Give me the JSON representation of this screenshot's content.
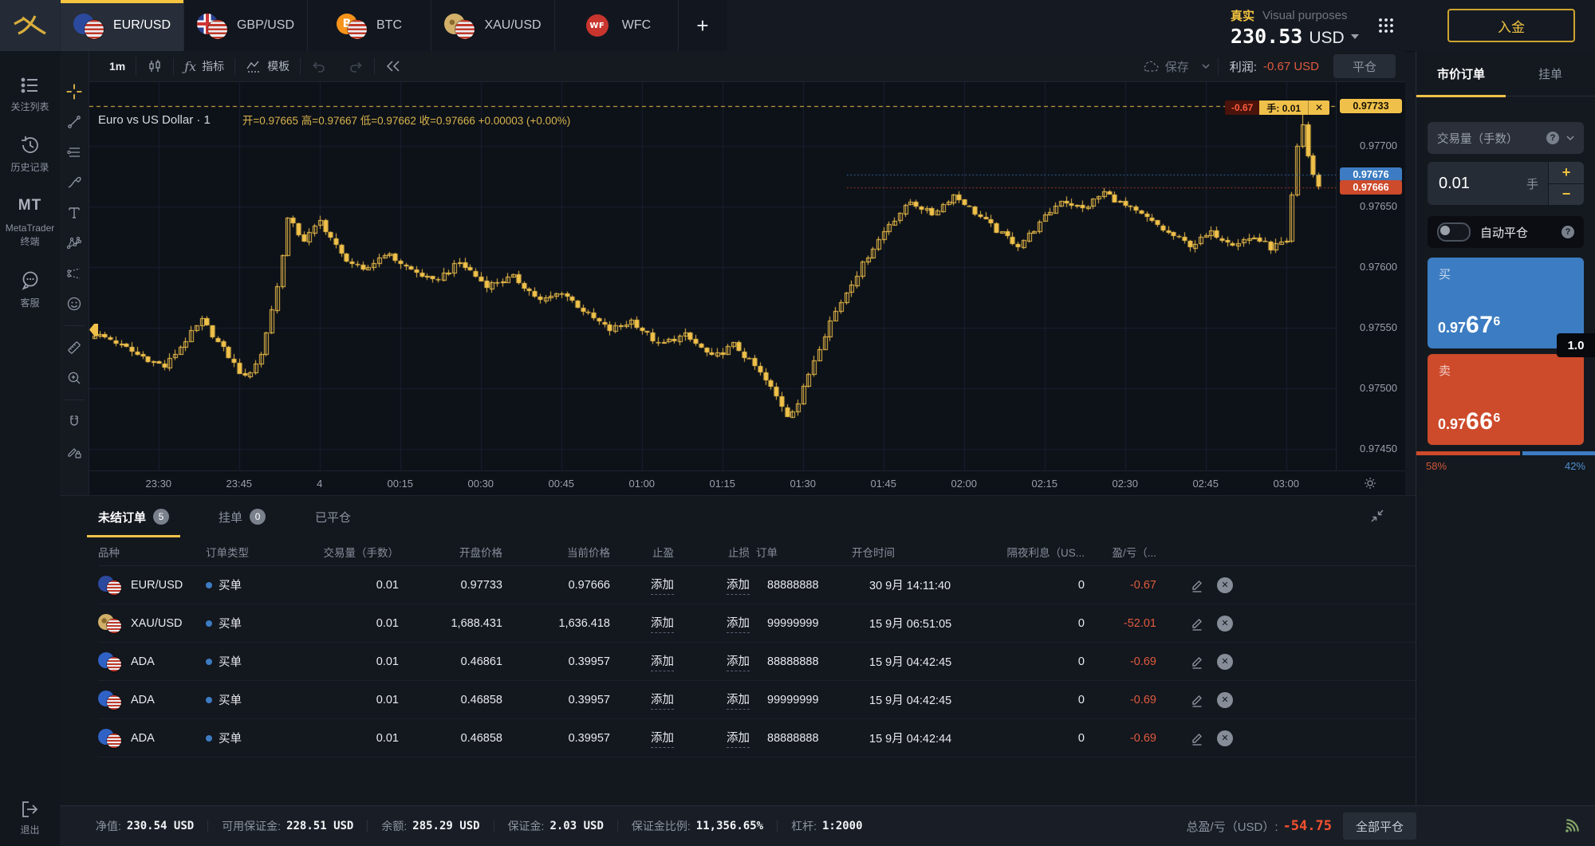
{
  "brand": {
    "deposit_label": "入金"
  },
  "top_bar": {
    "tabs": [
      {
        "label": "EUR/USD",
        "icon": "eu",
        "active": true
      },
      {
        "label": "GBP/USD",
        "icon": "gb",
        "active": false
      },
      {
        "label": "BTC",
        "icon": "btc",
        "active": false
      },
      {
        "label": "XAU/USD",
        "icon": "xau",
        "active": false
      },
      {
        "label": "WFC",
        "icon": "wf",
        "active": false
      }
    ],
    "add_tab": "+",
    "account": {
      "mode": "真实",
      "note": "Visual purposes",
      "balance": "230.53",
      "currency": "USD"
    }
  },
  "sidebar": {
    "items": [
      {
        "label": "关注列表",
        "icon": "watchlist-icon"
      },
      {
        "label": "历史记录",
        "icon": "history-icon"
      },
      {
        "label": "MetaTrader 终端",
        "icon": "mt-icon",
        "icon_text": "MT"
      },
      {
        "label": "客服",
        "icon": "support-icon"
      }
    ],
    "logout_label": "退出"
  },
  "chart_toolbar": {
    "interval": "1m",
    "indicators": "指标",
    "template": "模板",
    "save": "保存",
    "profit_label": "利润:",
    "profit_value": "-0.67 USD",
    "close_position": "平仓"
  },
  "chart": {
    "title": "Euro vs US Dollar · 1",
    "ohlc_text": "开=0.97665  高=0.97667  低=0.97662  收=0.97666  +0.00003 (+0.00%)",
    "position_pill": {
      "pl": "-0.67",
      "lots": "手: 0.01",
      "close": "✕"
    },
    "side_tools": [
      "crosshair-icon",
      "trendline-icon",
      "horizontal-lines-icon",
      "brush-icon",
      "text-icon",
      "xabcd-pattern-icon",
      "forecast-icon",
      "emoji-icon",
      "ruler-icon",
      "zoom-in-icon",
      "magnet-icon",
      "drawing-lock-icon"
    ]
  },
  "chart_data": {
    "type": "candlestick",
    "symbol": "EUR/USD",
    "interval": "1m",
    "title": "Euro vs US Dollar · 1",
    "current": {
      "open": 0.97665,
      "high": 0.97667,
      "low": 0.97662,
      "close": 0.97666,
      "change": "+0.00003",
      "change_pct": "+0.00%"
    },
    "y_axis": {
      "ticks": [
        0.977,
        0.9765,
        0.976,
        0.9755,
        0.975,
        0.9745
      ],
      "labels": [
        "0.97700",
        "0.97650",
        "0.97600",
        "0.97550",
        "0.97500",
        "0.97450"
      ],
      "range": [
        0.97432,
        0.97753
      ]
    },
    "x_axis": {
      "labels": [
        "23:30",
        "23:45",
        "4",
        "00:15",
        "00:30",
        "00:45",
        "01:00",
        "01:15",
        "01:30",
        "01:45",
        "02:00",
        "02:15",
        "02:30",
        "02:45",
        "03:00"
      ],
      "first_label_candle_index": 12,
      "candles_per_label": 15,
      "start_time": "23:18",
      "end_time": "03:06"
    },
    "price_lines": {
      "position": {
        "price": 0.97733,
        "label": "0.97733",
        "color": "#f0c14a",
        "style": "dashed"
      },
      "ask": {
        "price": 0.97676,
        "label": "0.97676",
        "color": "#3d7cc2",
        "style": "dotted"
      },
      "bid": {
        "price": 0.97666,
        "label": "0.97666",
        "color": "#cd4a2b",
        "style": "dotted"
      }
    },
    "candle_color": "#f0c14a",
    "candle_count": 229,
    "series_keyframes": [
      [
        0,
        0.97545
      ],
      [
        4,
        0.97538
      ],
      [
        8,
        0.97528
      ],
      [
        13,
        0.97518
      ],
      [
        17,
        0.9754
      ],
      [
        20,
        0.97556
      ],
      [
        24,
        0.97532
      ],
      [
        28,
        0.97508
      ],
      [
        31,
        0.97528
      ],
      [
        34,
        0.97584
      ],
      [
        36,
        0.9764
      ],
      [
        39,
        0.97622
      ],
      [
        42,
        0.97638
      ],
      [
        46,
        0.9761
      ],
      [
        50,
        0.97596
      ],
      [
        54,
        0.97612
      ],
      [
        58,
        0.976
      ],
      [
        63,
        0.97588
      ],
      [
        68,
        0.97604
      ],
      [
        73,
        0.97585
      ],
      [
        78,
        0.97592
      ],
      [
        83,
        0.97572
      ],
      [
        87,
        0.9758
      ],
      [
        92,
        0.9756
      ],
      [
        96,
        0.97548
      ],
      [
        100,
        0.97556
      ],
      [
        105,
        0.97536
      ],
      [
        110,
        0.97544
      ],
      [
        115,
        0.97525
      ],
      [
        119,
        0.97536
      ],
      [
        123,
        0.97518
      ],
      [
        126,
        0.975
      ],
      [
        129,
        0.97478
      ],
      [
        131,
        0.97488
      ],
      [
        134,
        0.97524
      ],
      [
        137,
        0.97556
      ],
      [
        140,
        0.9758
      ],
      [
        144,
        0.9761
      ],
      [
        148,
        0.97636
      ],
      [
        152,
        0.97654
      ],
      [
        156,
        0.97644
      ],
      [
        160,
        0.9766
      ],
      [
        164,
        0.97645
      ],
      [
        168,
        0.9763
      ],
      [
        172,
        0.97618
      ],
      [
        176,
        0.97636
      ],
      [
        180,
        0.97656
      ],
      [
        184,
        0.97648
      ],
      [
        188,
        0.97662
      ],
      [
        192,
        0.9765
      ],
      [
        196,
        0.9764
      ],
      [
        200,
        0.97628
      ],
      [
        204,
        0.97618
      ],
      [
        208,
        0.97628
      ],
      [
        212,
        0.9762
      ],
      [
        216,
        0.97625
      ],
      [
        219,
        0.97616
      ],
      [
        222,
        0.97622
      ],
      [
        223,
        0.9766
      ],
      [
        224,
        0.977
      ],
      [
        225,
        0.97718
      ],
      [
        226,
        0.97692
      ],
      [
        227,
        0.97676
      ],
      [
        228,
        0.97666
      ]
    ]
  },
  "order_panel": {
    "tabs": [
      {
        "label": "市价订单",
        "active": true
      },
      {
        "label": "挂单",
        "active": false
      }
    ],
    "volume_label": "交易量（手数）",
    "volume_value": "0.01",
    "volume_unit": "手",
    "increase": "+",
    "decrease": "−",
    "auto_close_label": "自动平仓",
    "buy_label": "买",
    "buy_price_prefix": "0.97",
    "buy_price_main": "67",
    "buy_price_sup": "6",
    "sell_label": "卖",
    "sell_price_prefix": "0.97",
    "sell_price_main": "66",
    "sell_price_sup": "6",
    "spread": "1.0",
    "sentiment_sell": "58%",
    "sentiment_buy": "42%",
    "sentiment_sell_pct": 58,
    "sentiment_buy_pct": 42
  },
  "orders_panel": {
    "tabs": [
      {
        "label": "未结订单",
        "badge": "5",
        "active": true
      },
      {
        "label": "挂单",
        "badge": "0",
        "active": false
      },
      {
        "label": "已平仓",
        "badge": "",
        "active": false
      }
    ],
    "columns": [
      {
        "label": "品种",
        "align": "l"
      },
      {
        "label": "订单类型",
        "align": "l"
      },
      {
        "label": "交易量（手数）",
        "align": "r"
      },
      {
        "label": "开盘价格",
        "align": "r"
      },
      {
        "label": "当前价格",
        "align": "r"
      },
      {
        "label": "止盈",
        "align": "r"
      },
      {
        "label": "止损",
        "align": "r"
      },
      {
        "label": "订单",
        "align": "l"
      },
      {
        "label": "开仓时间",
        "align": "l"
      },
      {
        "label": "隔夜利息（US...",
        "align": "r"
      },
      {
        "label": "盈/亏（...",
        "align": "r"
      }
    ],
    "rows": [
      {
        "symbol": "EUR/USD",
        "icon": "eu",
        "type": "买单",
        "volume": "0.01",
        "open_price": "0.97733",
        "current_price": "0.97666",
        "tp": "添加",
        "sl": "添加",
        "order_id": "88888888",
        "open_time": "30 9月 14:11:40",
        "swap": "0",
        "pl": "-0.67"
      },
      {
        "symbol": "XAU/USD",
        "icon": "xau",
        "type": "买单",
        "volume": "0.01",
        "open_price": "1,688.431",
        "current_price": "1,636.418",
        "tp": "添加",
        "sl": "添加",
        "order_id": "99999999",
        "open_time": "15 9月 06:51:05",
        "swap": "0",
        "pl": "-52.01"
      },
      {
        "symbol": "ADA",
        "icon": "ada",
        "type": "买单",
        "volume": "0.01",
        "open_price": "0.46861",
        "current_price": "0.39957",
        "tp": "添加",
        "sl": "添加",
        "order_id": "88888888",
        "open_time": "15 9月 04:42:45",
        "swap": "0",
        "pl": "-0.69"
      },
      {
        "symbol": "ADA",
        "icon": "ada",
        "type": "买单",
        "volume": "0.01",
        "open_price": "0.46858",
        "current_price": "0.39957",
        "tp": "添加",
        "sl": "添加",
        "order_id": "99999999",
        "open_time": "15 9月 04:42:45",
        "swap": "0",
        "pl": "-0.69"
      },
      {
        "symbol": "ADA",
        "icon": "ada",
        "type": "买单",
        "volume": "0.01",
        "open_price": "0.46858",
        "current_price": "0.39957",
        "tp": "添加",
        "sl": "添加",
        "order_id": "88888888",
        "open_time": "15 9月 04:42:44",
        "swap": "0",
        "pl": "-0.69"
      }
    ]
  },
  "status_bar": {
    "items": [
      {
        "label": "净值:",
        "value": "230.54 USD"
      },
      {
        "label": "可用保证金:",
        "value": "228.51 USD"
      },
      {
        "label": "余额:",
        "value": "285.29 USD"
      },
      {
        "label": "保证金:",
        "value": "2.03 USD"
      },
      {
        "label": "保证金比例:",
        "value": "11,356.65%"
      },
      {
        "label": "杠杆:",
        "value": "1:2000"
      }
    ],
    "total_pl_label": "总盈/亏（USD）:",
    "total_pl_value": "-54.75",
    "close_all_label": "全部平仓"
  },
  "colors": {
    "accent_yellow": "#f0c14a",
    "buy_blue": "#3d7cc2",
    "sell_red": "#cd4a2b",
    "loss_red": "#e05a3e",
    "chart_bg": "#0d1118",
    "panel_bg": "#14191f"
  }
}
